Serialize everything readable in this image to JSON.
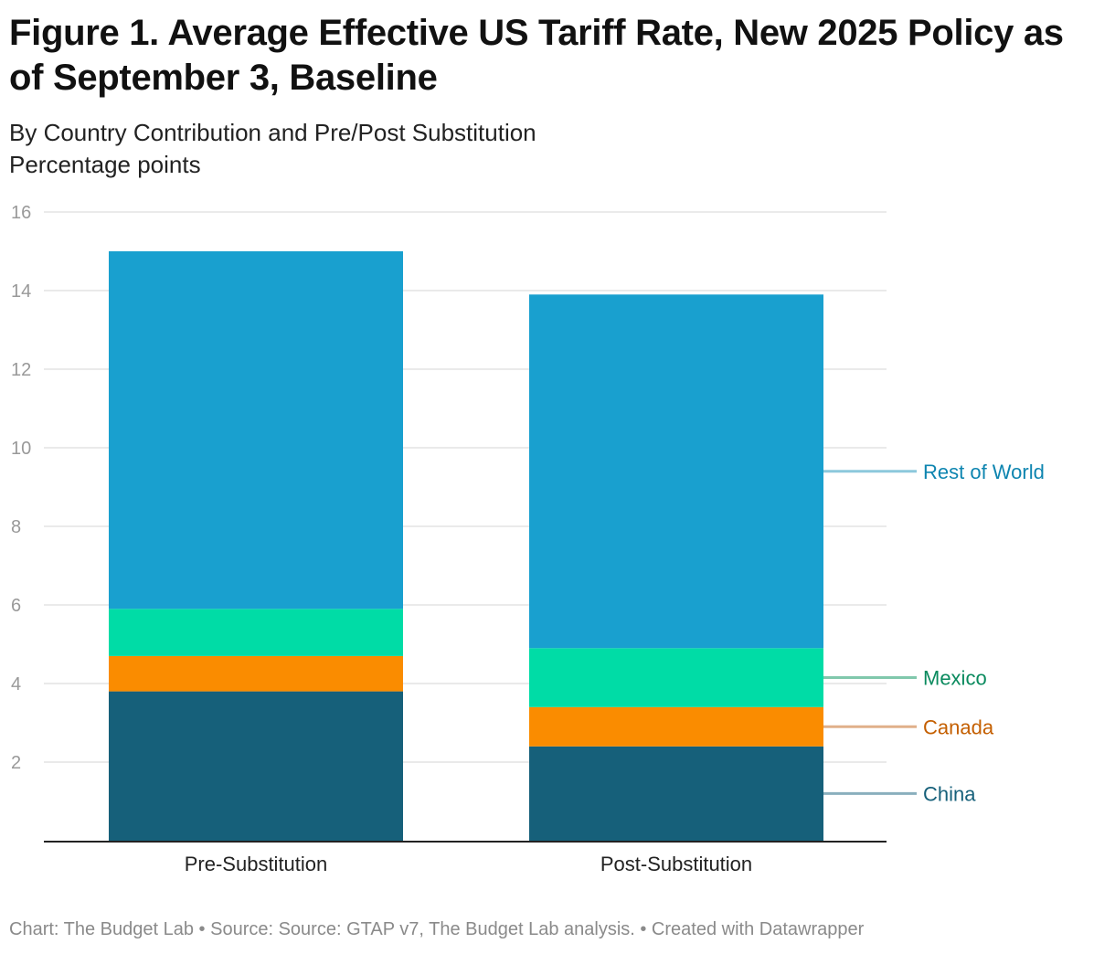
{
  "title": "Figure 1. Average Effective US Tariff Rate, New 2025 Policy as of September 3, Baseline",
  "subtitle": "By Country Contribution and Pre/Post Substitution",
  "unit_label": "Percentage points",
  "footer": "Chart: The Budget Lab • Source: Source: GTAP v7, The Budget Lab analysis. • Created with Datawrapper",
  "chart_data": {
    "type": "bar",
    "stacked": true,
    "title": "Figure 1. Average Effective US Tariff Rate, New 2025 Policy as of September 3, Baseline",
    "subtitle": "By Country Contribution and Pre/Post Substitution",
    "ylabel": "Percentage points",
    "categories": [
      "Pre-Substitution",
      "Post-Substitution"
    ],
    "series": [
      {
        "name": "China",
        "values": [
          3.8,
          2.4
        ],
        "color": "#16607a",
        "label_color": "#16607a",
        "leader_color": "#8aafbd"
      },
      {
        "name": "Canada",
        "values": [
          0.9,
          1.0
        ],
        "color": "#fa8c00",
        "label_color": "#c45f00",
        "leader_color": "#e0b08a"
      },
      {
        "name": "Mexico",
        "values": [
          1.2,
          1.5
        ],
        "color": "#00dca6",
        "label_color": "#0a8a5e",
        "leader_color": "#80c8ac"
      },
      {
        "name": "Rest of World",
        "values": [
          9.1,
          9.0
        ],
        "color": "#19a0cf",
        "label_color": "#0e85b0",
        "leader_color": "#8cc8dc"
      }
    ],
    "yticks": [
      2,
      4,
      6,
      8,
      10,
      12,
      14,
      16
    ],
    "ylim": [
      0,
      16
    ],
    "grid": true,
    "legend": "direct labels right"
  }
}
